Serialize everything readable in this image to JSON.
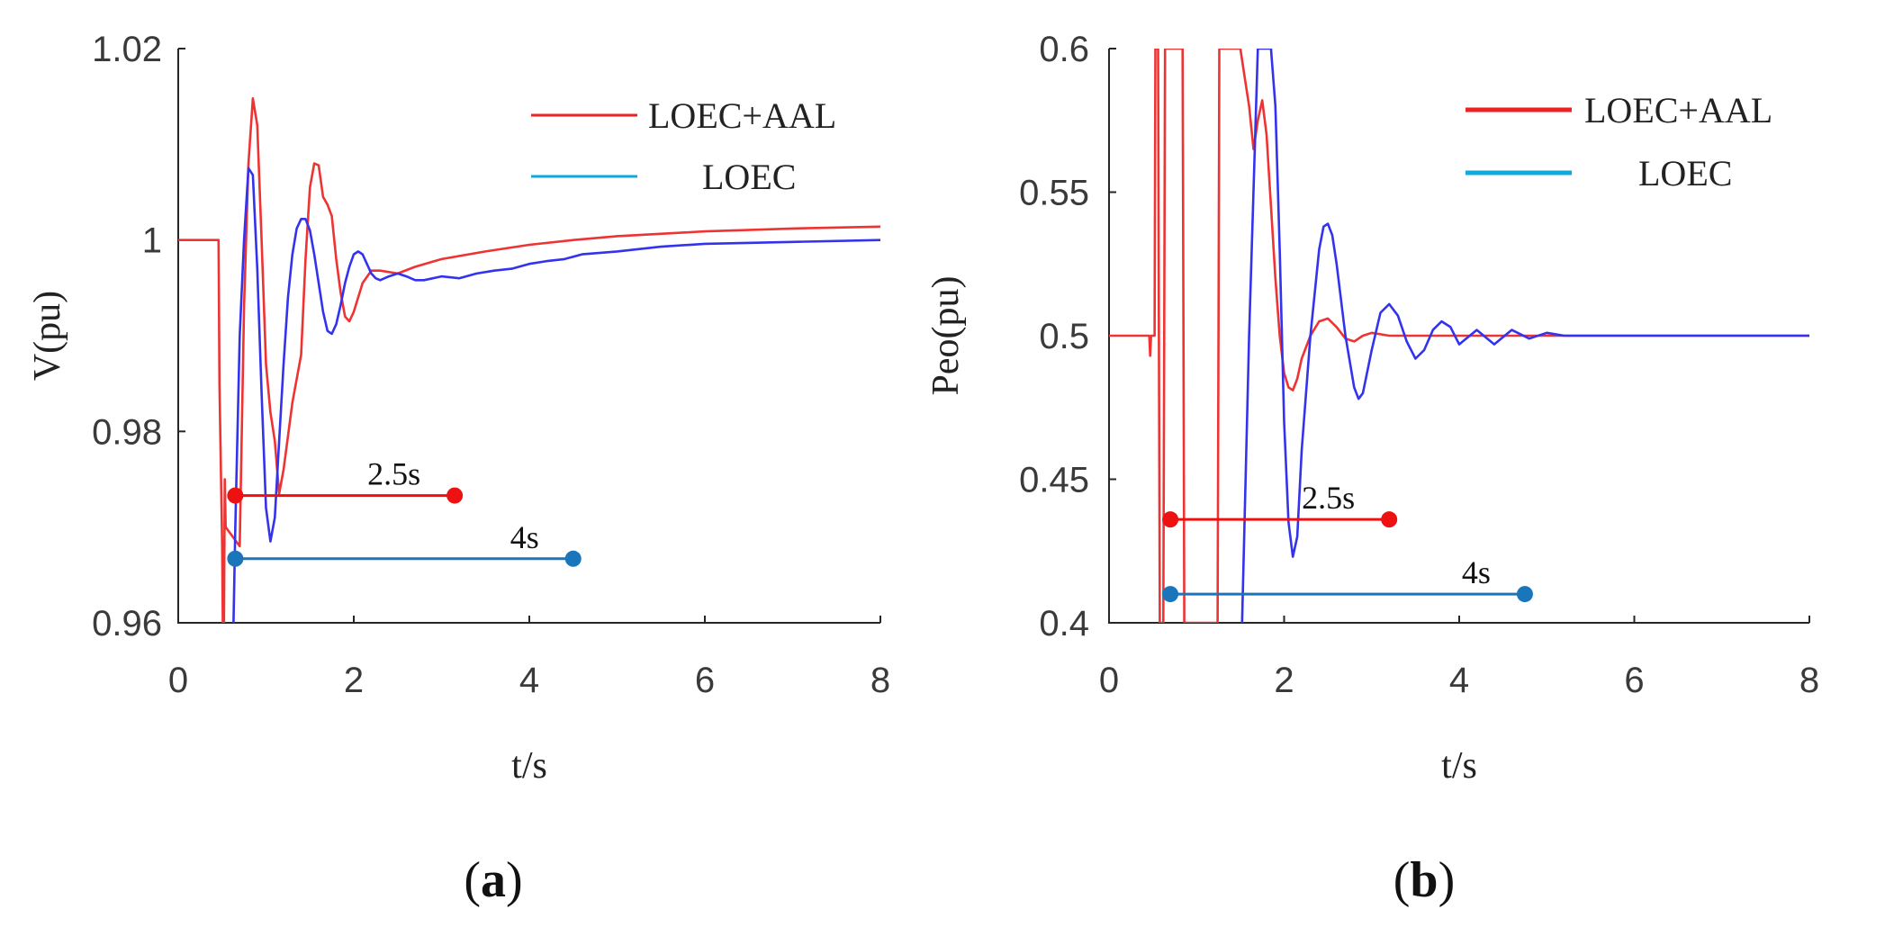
{
  "chart_data": [
    {
      "type": "line",
      "panel_label": "a",
      "title": "",
      "xlabel": "t/s",
      "ylabel": "V(pu)",
      "xlim": [
        0,
        8
      ],
      "ylim": [
        0.96,
        1.02
      ],
      "xticks": [
        0,
        2,
        4,
        6,
        8
      ],
      "xtick_labels": [
        "0",
        "2",
        "4",
        "6",
        "8"
      ],
      "yticks": [
        0.96,
        0.98,
        1.0,
        1.02
      ],
      "ytick_labels": [
        "0.96",
        "0.98",
        "1",
        "1.02"
      ],
      "grid": false,
      "legend_position": "top-right",
      "series": [
        {
          "name": "LOEC+AAL",
          "color": "#ee3333",
          "x": [
            0,
            0.45,
            0.46,
            0.47,
            0.5,
            0.51,
            0.52,
            0.53,
            0.54,
            0.7,
            0.75,
            0.8,
            0.85,
            0.9,
            0.95,
            1.0,
            1.05,
            1.1,
            1.15,
            1.2,
            1.3,
            1.4,
            1.45,
            1.5,
            1.55,
            1.6,
            1.65,
            1.7,
            1.75,
            1.8,
            1.85,
            1.9,
            1.95,
            2.0,
            2.1,
            2.2,
            2.3,
            2.5,
            2.7,
            3.0,
            3.5,
            4.0,
            4.5,
            5.0,
            6.0,
            7.0,
            8.0
          ],
          "values": [
            1.0,
            1.0,
            1.0,
            0.985,
            0.968,
            0.958,
            0.958,
            0.975,
            0.97,
            0.968,
            0.993,
            1.008,
            1.0148,
            1.012,
            1.0,
            0.987,
            0.982,
            0.979,
            0.9735,
            0.976,
            0.983,
            0.988,
            0.998,
            1.0055,
            1.008,
            1.0078,
            1.0045,
            1.0037,
            1.0025,
            0.998,
            0.9945,
            0.992,
            0.9915,
            0.9925,
            0.9955,
            0.9968,
            0.9968,
            0.9965,
            0.9972,
            0.998,
            0.9988,
            0.9995,
            1.0,
            1.0004,
            1.0009,
            1.0012,
            1.0014
          ]
        },
        {
          "name": "LOEC",
          "color": "#3333ee",
          "x": [
            0.62,
            0.65,
            0.7,
            0.75,
            0.8,
            0.85,
            0.9,
            0.95,
            1.0,
            1.05,
            1.1,
            1.15,
            1.2,
            1.25,
            1.3,
            1.35,
            1.4,
            1.45,
            1.5,
            1.55,
            1.6,
            1.65,
            1.7,
            1.75,
            1.8,
            1.85,
            1.9,
            1.95,
            2.0,
            2.05,
            2.1,
            2.15,
            2.2,
            2.25,
            2.3,
            2.4,
            2.5,
            2.6,
            2.7,
            2.8,
            3.0,
            3.2,
            3.4,
            3.6,
            3.8,
            4.0,
            4.2,
            4.4,
            4.6,
            5.0,
            5.5,
            6.0,
            7.0,
            8.0
          ],
          "values": [
            0.955,
            0.97,
            0.99,
            1.0,
            1.0075,
            1.0068,
            0.997,
            0.984,
            0.972,
            0.9685,
            0.971,
            0.979,
            0.987,
            0.994,
            0.9985,
            1.0012,
            1.0022,
            1.0022,
            1.001,
            0.9985,
            0.9955,
            0.9925,
            0.9905,
            0.9902,
            0.9912,
            0.9932,
            0.9955,
            0.9972,
            0.9985,
            0.9988,
            0.9985,
            0.9975,
            0.9965,
            0.996,
            0.9958,
            0.9962,
            0.9965,
            0.9962,
            0.9958,
            0.9958,
            0.9962,
            0.996,
            0.9965,
            0.9968,
            0.997,
            0.9975,
            0.9978,
            0.998,
            0.9985,
            0.9988,
            0.9993,
            0.9996,
            0.9998,
            1.0
          ]
        }
      ],
      "annotations": [
        {
          "label": "2.5s",
          "t_start": 0.65,
          "t_end": 3.15,
          "y": 0.9733,
          "color": "#ee1111"
        },
        {
          "label": "4s",
          "t_start": 0.65,
          "t_end": 4.5,
          "y": 0.9667,
          "color": "#1a75bb"
        }
      ]
    },
    {
      "type": "line",
      "panel_label": "b",
      "title": "",
      "xlabel": "t/s",
      "ylabel": "Peo(pu)",
      "xlim": [
        0,
        8
      ],
      "ylim": [
        0.4,
        0.6
      ],
      "xticks": [
        0,
        2,
        4,
        6,
        8
      ],
      "xtick_labels": [
        "0",
        "2",
        "4",
        "6",
        "8"
      ],
      "yticks": [
        0.4,
        0.45,
        0.5,
        0.55,
        0.6
      ],
      "ytick_labels": [
        "0.4",
        "0.45",
        "0.5",
        "0.55",
        "0.6"
      ],
      "grid": false,
      "legend_position": "top-right",
      "series": [
        {
          "name": "LOEC+AAL",
          "color": "#ee3333",
          "x": [
            0,
            0.45,
            0.46,
            0.47,
            0.48,
            0.49,
            0.52,
            0.53,
            0.56,
            0.57,
            0.58,
            0.59,
            0.62,
            0.63,
            0.64,
            0.65,
            0.84,
            0.85,
            0.86,
            0.87,
            1.24,
            1.25,
            1.26,
            1.27,
            1.5,
            1.55,
            1.6,
            1.65,
            1.7,
            1.75,
            1.8,
            1.85,
            1.9,
            1.95,
            2.0,
            2.05,
            2.1,
            2.15,
            2.2,
            2.3,
            2.4,
            2.5,
            2.6,
            2.7,
            2.8,
            2.9,
            3.0,
            3.2,
            3.5,
            4.0,
            5.0,
            6.0,
            8.0
          ],
          "values": [
            0.5,
            0.5,
            0.5,
            0.493,
            0.5,
            0.5,
            0.5,
            0.6,
            0.6,
            0.5,
            0.4,
            0.4,
            0.4,
            0.5,
            0.6,
            0.6,
            0.6,
            0.5,
            0.4,
            0.4,
            0.4,
            0.5,
            0.6,
            0.6,
            0.6,
            0.59,
            0.58,
            0.565,
            0.575,
            0.582,
            0.57,
            0.545,
            0.52,
            0.5,
            0.487,
            0.482,
            0.481,
            0.485,
            0.492,
            0.5,
            0.505,
            0.506,
            0.503,
            0.499,
            0.498,
            0.5,
            0.501,
            0.5,
            0.5,
            0.5,
            0.5,
            0.5,
            0.5
          ]
        },
        {
          "name": "LOEC",
          "color": "#3333ee",
          "x": [
            1.52,
            1.6,
            1.7,
            1.75,
            1.8,
            1.85,
            1.9,
            1.95,
            2.0,
            2.05,
            2.1,
            2.15,
            2.2,
            2.3,
            2.4,
            2.45,
            2.5,
            2.55,
            2.6,
            2.7,
            2.8,
            2.85,
            2.9,
            3.0,
            3.1,
            3.2,
            3.3,
            3.4,
            3.5,
            3.6,
            3.7,
            3.8,
            3.9,
            4.0,
            4.2,
            4.4,
            4.6,
            4.8,
            5.0,
            5.2,
            5.5,
            6.0,
            7.0,
            8.0
          ],
          "values": [
            0.4,
            0.5,
            0.6,
            0.6,
            0.6,
            0.6,
            0.58,
            0.53,
            0.47,
            0.435,
            0.423,
            0.43,
            0.46,
            0.5,
            0.53,
            0.538,
            0.539,
            0.535,
            0.525,
            0.5,
            0.482,
            0.478,
            0.48,
            0.495,
            0.508,
            0.511,
            0.507,
            0.498,
            0.492,
            0.495,
            0.502,
            0.505,
            0.503,
            0.497,
            0.502,
            0.497,
            0.502,
            0.499,
            0.501,
            0.5,
            0.5,
            0.5,
            0.5,
            0.5
          ]
        }
      ],
      "annotations": [
        {
          "label": "2.5s",
          "t_start": 0.7,
          "t_end": 3.2,
          "y": 0.436,
          "color": "#ee1111"
        },
        {
          "label": "4s",
          "t_start": 0.7,
          "t_end": 4.75,
          "y": 0.41,
          "color": "#1a75bb"
        }
      ]
    }
  ]
}
